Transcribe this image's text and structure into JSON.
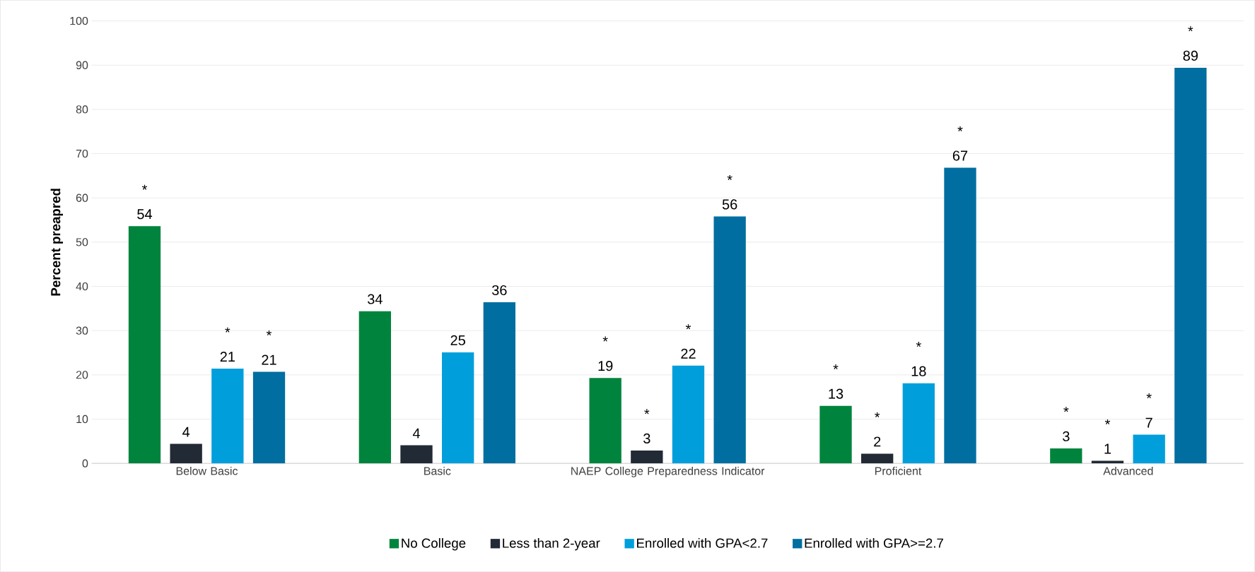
{
  "chart_data": {
    "type": "bar",
    "ylabel": "Percent preapred",
    "categories": [
      "Below Basic",
      "Basic",
      "NAEP College Preparedness Indicator",
      "Proficient",
      "Advanced"
    ],
    "series": [
      {
        "name": "No College",
        "color": "#00843d",
        "values": [
          53.6,
          34.4,
          19.3,
          13.0,
          3.4
        ],
        "value_labels": [
          "* 54",
          "34",
          "* 19",
          "* 13",
          "* 3"
        ]
      },
      {
        "name": "Less than 2-year",
        "color": "#212a35",
        "values": [
          4.4,
          4.1,
          2.9,
          2.2,
          0.6
        ],
        "value_labels": [
          "4",
          "4",
          "* 3",
          "* 2",
          "* 1"
        ]
      },
      {
        "name": "Enrolled with GPA<2.7",
        "color": "#009fdb",
        "values": [
          21.4,
          25.1,
          22.1,
          18.1,
          6.5
        ],
        "value_labels": [
          "* 21",
          "25",
          "* 22",
          "* 18",
          "* 7"
        ]
      },
      {
        "name": "Enrolled with GPA>=2.7",
        "color": "#006ea0",
        "values": [
          20.7,
          36.4,
          55.8,
          66.8,
          89.4
        ],
        "value_labels": [
          "* 21",
          "36",
          "* 56",
          "* 67",
          "* 89"
        ]
      }
    ],
    "ylim": [
      0,
      100
    ],
    "yticks": [
      0,
      10,
      20,
      30,
      40,
      50,
      60,
      70,
      80,
      90,
      100
    ],
    "grid": "y",
    "legend": "bottom"
  }
}
